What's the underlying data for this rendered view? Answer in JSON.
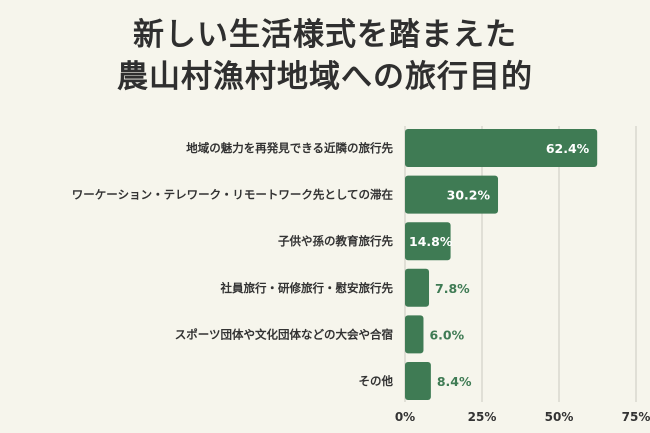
{
  "colors": {
    "background": "#f6f5ec",
    "bar": "#3f7b54",
    "grid": "#c9c9bf",
    "label_inside": "#ffffff",
    "label_outside": "#3f7b54"
  },
  "chart_data": {
    "type": "bar",
    "orientation": "horizontal",
    "title": [
      "新しい生活様式を踏まえた",
      "農山村漁村地域への旅行目的"
    ],
    "categories": [
      "地域の魅力を再発見できる近隣の旅行先",
      "ワーケーション・テレワーク・リモートワーク先としての滞在",
      "子供や孫の教育旅行先",
      "社員旅行・研修旅行・慰安旅行先",
      "スポーツ団体や文化団体などの大会や合宿",
      "その他"
    ],
    "values": [
      62.4,
      30.2,
      14.8,
      7.8,
      6.0,
      8.4
    ],
    "value_labels": [
      "62.4%",
      "30.2%",
      "14.8%",
      "7.8%",
      "6.0%",
      "8.4%"
    ],
    "xlim": [
      0,
      75
    ],
    "ticks": [
      0,
      25,
      50,
      75
    ],
    "tick_labels": [
      "0%",
      "25%",
      "50%",
      "75%"
    ],
    "grid": true
  }
}
